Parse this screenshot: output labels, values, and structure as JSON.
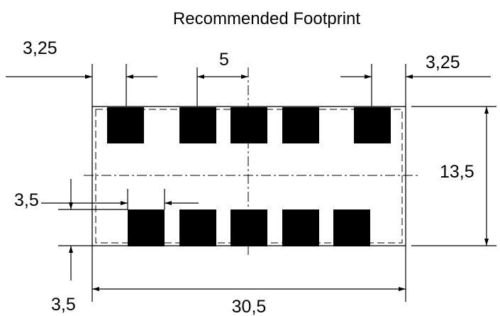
{
  "title": "Recommended Footprint",
  "dimensions": {
    "left_offset": "3,25",
    "pitch": "5",
    "right_offset": "3,25",
    "height": "13,5",
    "pad_size_row": "3,5",
    "pad_size_col": "3,5",
    "width": "30,5"
  },
  "pads": {
    "top_row_count": 5,
    "bottom_row_count": 5
  },
  "colors": {
    "pad": "#000000",
    "line": "#000000",
    "background": "#ffffff"
  }
}
